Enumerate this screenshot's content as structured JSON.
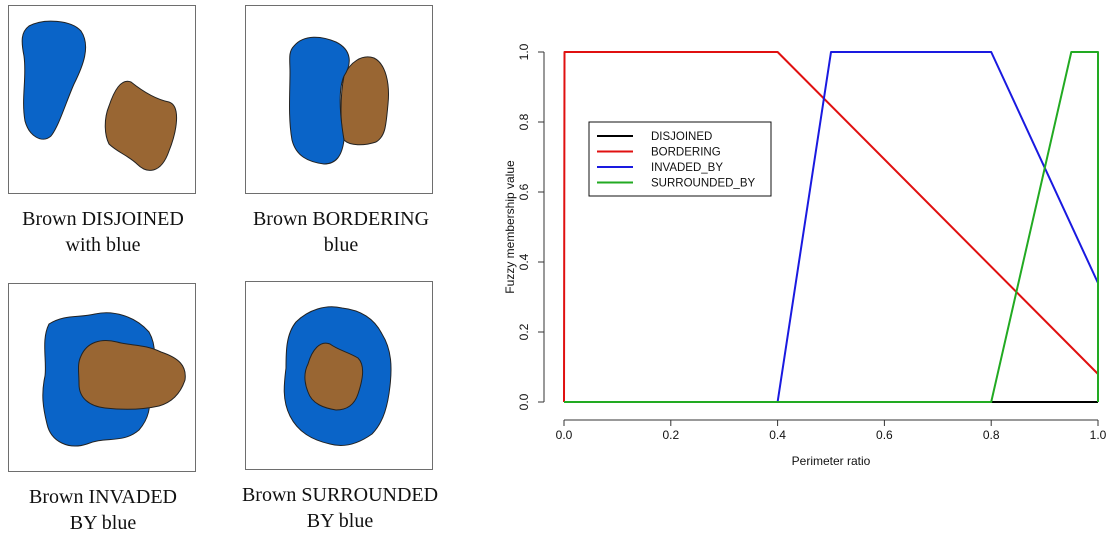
{
  "panels": [
    {
      "caption_line1": "Brown DISJOINED",
      "caption_line2": "with blue"
    },
    {
      "caption_line1": "Brown BORDERING",
      "caption_line2": "blue"
    },
    {
      "caption_line1": "Brown INVADED",
      "caption_line2": "BY blue"
    },
    {
      "caption_line1": "Brown SURROUNDED",
      "caption_line2": "BY blue"
    }
  ],
  "colors": {
    "blue_region": "#0a64c8",
    "brown_region": "#996633"
  },
  "chart_data": {
    "type": "line",
    "xlabel": "Perimeter ratio",
    "ylabel": "Fuzzy membership value",
    "xlim": [
      0,
      1
    ],
    "ylim": [
      0,
      1
    ],
    "xticks": [
      "0.0",
      "0.2",
      "0.4",
      "0.6",
      "0.8",
      "1.0"
    ],
    "yticks": [
      "0.0",
      "0.2",
      "0.4",
      "0.6",
      "0.8",
      "1.0"
    ],
    "grid": false,
    "legend_position": "left",
    "series": [
      {
        "name": "DISJOINED",
        "color": "#000000",
        "x": [
          0,
          1
        ],
        "y": [
          0,
          0
        ]
      },
      {
        "name": "BORDERING",
        "color": "#e01010",
        "x": [
          0,
          0.001,
          0.4,
          1.0
        ],
        "y": [
          0,
          1,
          1,
          0.08
        ]
      },
      {
        "name": "INVADED_BY",
        "color": "#1a1ae0",
        "x": [
          0,
          0.4,
          0.5,
          0.8,
          1.0
        ],
        "y": [
          0,
          0,
          1,
          1,
          0.34
        ]
      },
      {
        "name": "SURROUNDED_BY",
        "color": "#22aa22",
        "x": [
          0,
          0.8,
          0.95,
          1.0,
          1.0
        ],
        "y": [
          0,
          0,
          1,
          1,
          0
        ]
      }
    ]
  }
}
